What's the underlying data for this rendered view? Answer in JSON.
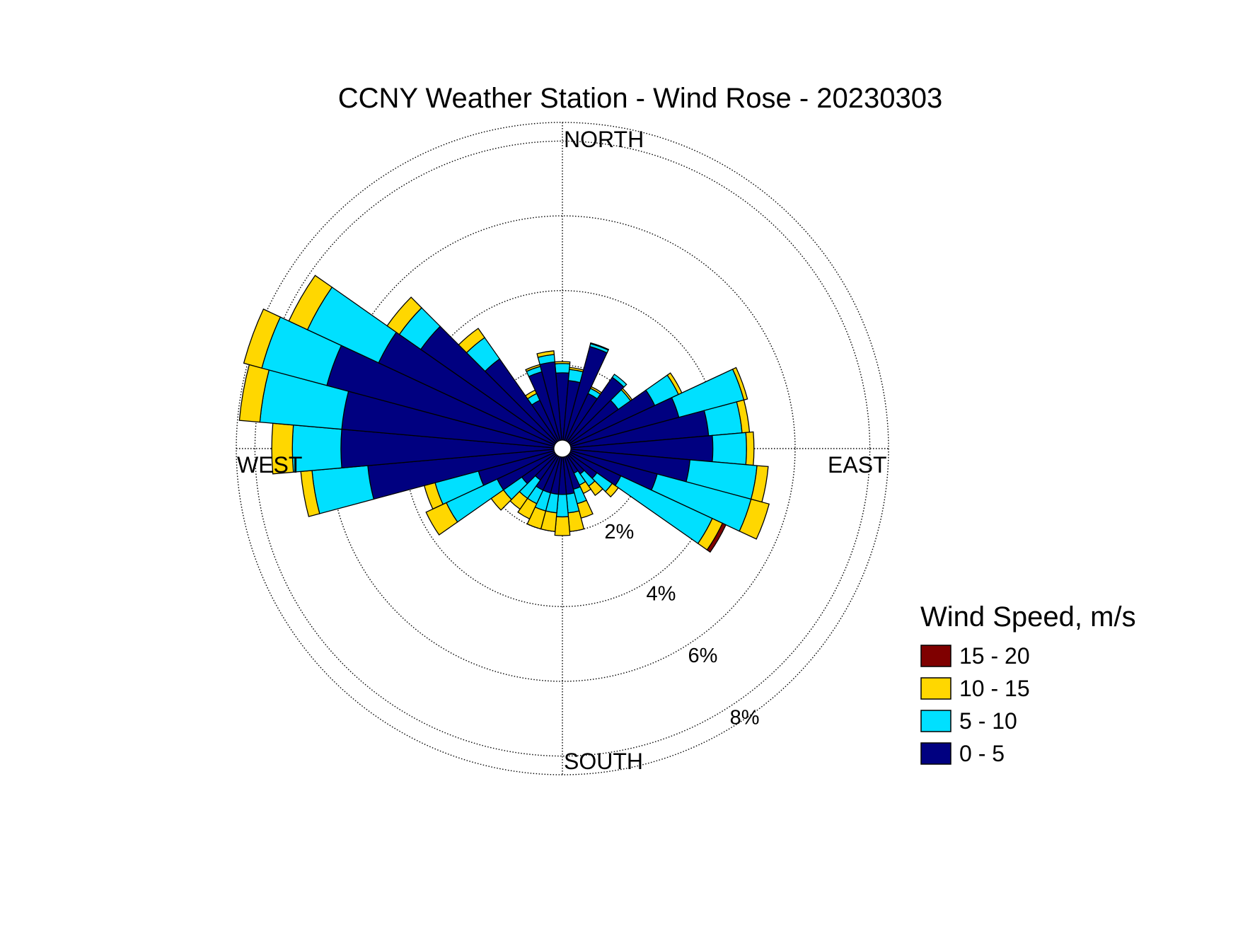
{
  "chart_data": {
    "type": "windrose",
    "title": "CCNY Weather Station - Wind Rose - 20230303",
    "direction_labels": {
      "north": "NORTH",
      "east": "EAST",
      "south": "SOUTH",
      "west": "WEST"
    },
    "radial_ticks": [
      2,
      4,
      6,
      8
    ],
    "radial_tick_labels": [
      "2%",
      "4%",
      "6%",
      "8%"
    ],
    "radial_max": 8.5,
    "grid": true,
    "legend": {
      "title": "Wind Speed, m/s",
      "placement": "bottom-right",
      "entries": [
        {
          "label": "15 - 20",
          "color": "#7f0000"
        },
        {
          "label": "10 - 15",
          "color": "#ffd700"
        },
        {
          "label": "5 - 10",
          "color": "#00e0ff"
        },
        {
          "label": "0 - 5",
          "color": "#000080"
        }
      ]
    },
    "bin_width_deg": 10,
    "series": [
      {
        "name": "0 - 5",
        "color": "#000080"
      },
      {
        "name": "5 - 10",
        "color": "#00e0ff"
      },
      {
        "name": "10 - 15",
        "color": "#ffd700"
      },
      {
        "name": "15 - 20",
        "color": "#7f0000"
      }
    ],
    "directions_deg": [
      0,
      10,
      20,
      30,
      40,
      50,
      60,
      70,
      80,
      90,
      100,
      110,
      120,
      130,
      140,
      150,
      160,
      170,
      180,
      190,
      200,
      210,
      220,
      230,
      240,
      250,
      260,
      270,
      280,
      290,
      300,
      310,
      320,
      330,
      340,
      350
    ],
    "cumulative_percent": [
      [
        1.8,
        2.05,
        2.1,
        2.1
      ],
      [
        1.6,
        1.9,
        1.95,
        1.95
      ],
      [
        2.6,
        2.68,
        2.7,
        2.7
      ],
      [
        1.4,
        1.55,
        1.6,
        1.6
      ],
      [
        2.1,
        2.2,
        2.2,
        2.2
      ],
      [
        1.6,
        2.0,
        2.05,
        2.05
      ],
      [
        2.5,
        3.2,
        3.3,
        3.3
      ],
      [
        3.0,
        4.8,
        4.9,
        4.9
      ],
      [
        3.7,
        4.6,
        4.8,
        4.8
      ],
      [
        3.8,
        4.7,
        4.9,
        4.9
      ],
      [
        3.2,
        5.0,
        5.3,
        5.3
      ],
      [
        2.4,
        5.0,
        5.5,
        5.5
      ],
      [
        1.5,
        4.2,
        4.5,
        4.6
      ],
      [
        0.9,
        1.4,
        1.6,
        1.6
      ],
      [
        0.6,
        1.0,
        1.3,
        1.3
      ],
      [
        0.5,
        0.85,
        1.1,
        1.1
      ],
      [
        0.9,
        1.3,
        1.7,
        1.7
      ],
      [
        1.0,
        1.5,
        2.0,
        2.0
      ],
      [
        1.0,
        1.6,
        2.1,
        2.1
      ],
      [
        1.0,
        1.5,
        2.0,
        2.0
      ],
      [
        1.0,
        1.5,
        2.0,
        2.0
      ],
      [
        1.0,
        1.4,
        1.85,
        1.85
      ],
      [
        0.8,
        1.4,
        1.75,
        1.75
      ],
      [
        1.1,
        1.7,
        2.1,
        2.1
      ],
      [
        1.7,
        3.2,
        3.8,
        3.8
      ],
      [
        2.1,
        3.3,
        3.6,
        3.6
      ],
      [
        5.0,
        6.5,
        6.8,
        6.8
      ],
      [
        5.7,
        7.0,
        7.55,
        7.55
      ],
      [
        5.7,
        7.9,
        8.45,
        8.45
      ],
      [
        6.3,
        8.1,
        8.6,
        8.6
      ],
      [
        5.2,
        7.3,
        7.85,
        7.85
      ],
      [
        4.4,
        5.1,
        5.5,
        5.5
      ],
      [
        2.7,
        3.4,
        3.7,
        3.7
      ],
      [
        1.2,
        1.4,
        1.5,
        1.5
      ],
      [
        1.9,
        2.05,
        2.1,
        2.1
      ],
      [
        2.1,
        2.3,
        2.4,
        2.4
      ]
    ]
  }
}
